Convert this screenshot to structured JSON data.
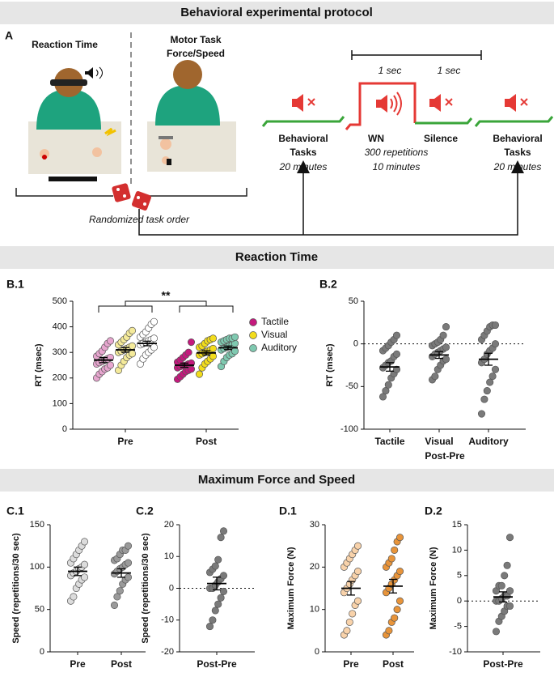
{
  "sections": [
    "Behavioral experimental protocol",
    "Reaction Time",
    "Maximum Force and Speed"
  ],
  "protocol": {
    "panel": "A",
    "rt_title": "Reaction Time",
    "motor_title": [
      "Motor Task",
      "Force/Speed"
    ],
    "randomized": "Randomized task order",
    "intervals": [
      "1 sec",
      "1 sec"
    ],
    "pre_block": [
      "Behavioral",
      "Tasks",
      "20 minutes"
    ],
    "wn": "WN",
    "silence": "Silence",
    "repetitions": "300 repetitions",
    "wn_duration": "10 minutes",
    "post_block": [
      "Behavioral",
      "Tasks",
      "20 minutes"
    ]
  },
  "chart_data": [
    {
      "type": "dot",
      "panel": "B.1",
      "ylabel": "RT (msec)",
      "categories": [
        "Pre",
        "Post"
      ],
      "ylim": [
        0,
        500
      ],
      "yticks": [
        0,
        100,
        200,
        300,
        400,
        500
      ],
      "annotation": "**",
      "legend": "right",
      "series": [
        {
          "name": "Tactile",
          "colors": [
            "#e7a6cf",
            "#c4197d"
          ],
          "values": [
            [
              200,
              215,
              225,
              235,
              240,
              250,
              255,
              260,
              265,
              270,
              275,
              280,
              285,
              295,
              305,
              320,
              335,
              345
            ],
            [
              195,
              205,
              215,
              225,
              230,
              235,
              240,
              245,
              248,
              250,
              255,
              258,
              262,
              270,
              280,
              290,
              300,
              340
            ]
          ],
          "means": [
            270,
            250
          ],
          "sem": [
            10,
            8
          ]
        },
        {
          "name": "Visual",
          "colors": [
            "#f4ea9a",
            "#f2dc1c"
          ],
          "values": [
            [
              230,
              250,
              265,
              280,
              290,
              295,
              300,
              305,
              310,
              315,
              320,
              325,
              330,
              340,
              350,
              360,
              375,
              385
            ],
            [
              215,
              240,
              255,
              265,
              275,
              285,
              290,
              295,
              300,
              305,
              310,
              315,
              320,
              325,
              335,
              345,
              350,
              355
            ]
          ],
          "means": [
            310,
            298
          ],
          "sem": [
            9,
            8
          ]
        },
        {
          "name": "Auditory",
          "colors": [
            "#ffffff",
            "#7fc9b0"
          ],
          "values": [
            [
              255,
              275,
              290,
              300,
              310,
              320,
              330,
              335,
              340,
              345,
              350,
              355,
              360,
              370,
              380,
              395,
              410,
              420
            ],
            [
              245,
              265,
              280,
              290,
              295,
              305,
              310,
              315,
              320,
              325,
              330,
              335,
              340,
              345,
              350,
              355,
              355,
              360
            ]
          ],
          "means": [
            335,
            318
          ],
          "sem": [
            9,
            7
          ]
        }
      ]
    },
    {
      "type": "dot",
      "panel": "B.2",
      "ylabel": "RT (msec)",
      "xlabel": "Post-Pre",
      "categories": [
        "Tactile",
        "Visual",
        "Auditory"
      ],
      "ylim": [
        -100,
        50
      ],
      "yticks": [
        -100,
        -50,
        0,
        50
      ],
      "zero_line": true,
      "series": [
        {
          "colors": [
            "#7a7a7a",
            "#7a7a7a",
            "#7a7a7a"
          ],
          "values": [
            [
              -62,
              -55,
              -48,
              -40,
              -35,
              -30,
              -28,
              -25,
              -22,
              -20,
              -15,
              -12,
              -8,
              -5,
              -2,
              2,
              5,
              10
            ],
            [
              -42,
              -38,
              -30,
              -25,
              -20,
              -18,
              -15,
              -12,
              -10,
              -8,
              -6,
              -4,
              -2,
              0,
              2,
              5,
              10,
              20
            ],
            [
              -82,
              -65,
              -55,
              -45,
              -38,
              -30,
              -22,
              -18,
              -12,
              -8,
              -5,
              0,
              5,
              10,
              15,
              20,
              22,
              22
            ]
          ],
          "means": [
            -27,
            -13,
            -18
          ],
          "sem": [
            5,
            4,
            7
          ]
        }
      ]
    },
    {
      "type": "dot",
      "panel": "C.1",
      "ylabel": "Speed (repetitions/30 sec)",
      "categories": [
        "Pre",
        "Post"
      ],
      "ylim": [
        0,
        150
      ],
      "yticks": [
        0,
        50,
        100,
        150
      ],
      "series": [
        {
          "colors": [
            "#dcdcdc",
            "#9a9a9a"
          ],
          "values": [
            [
              60,
              65,
              75,
              80,
              85,
              88,
              90,
              93,
              95,
              98,
              100,
              103,
              105,
              110,
              115,
              120,
              125,
              130
            ],
            [
              55,
              65,
              72,
              80,
              85,
              88,
              92,
              95,
              98,
              100,
              103,
              105,
              108,
              110,
              115,
              120,
              120,
              125
            ]
          ],
          "means": [
            95,
            93
          ],
          "sem": [
            5,
            5
          ]
        }
      ]
    },
    {
      "type": "dot",
      "panel": "C.2",
      "ylabel": "Speed (repetitions/30 sec)",
      "categories": [
        "Post-Pre"
      ],
      "ylim": [
        -20,
        20
      ],
      "yticks": [
        -20,
        -10,
        0,
        10,
        20
      ],
      "zero_line": true,
      "series": [
        {
          "colors": [
            "#7a7a7a"
          ],
          "values": [
            [
              -12,
              -10,
              -7,
              -5,
              -3,
              -1,
              0,
              0,
              1,
              2,
              3,
              4,
              5,
              6,
              7,
              9,
              16,
              18
            ]
          ],
          "means": [
            1.5
          ],
          "sem": [
            2
          ]
        }
      ]
    },
    {
      "type": "dot",
      "panel": "D.1",
      "ylabel": "Maximum Force (N)",
      "categories": [
        "Pre",
        "Post"
      ],
      "ylim": [
        0,
        30
      ],
      "yticks": [
        0,
        10,
        20,
        30
      ],
      "series": [
        {
          "colors": [
            "#f8d2aa",
            "#e8943a"
          ],
          "values": [
            [
              4,
              5,
              7,
              9,
              11,
              12,
              14,
              15,
              16,
              17,
              18,
              19,
              20,
              21,
              22,
              23,
              24,
              25
            ],
            [
              4,
              5,
              7,
              8,
              10,
              12,
              14,
              15,
              16,
              17,
              18,
              19,
              20,
              21,
              22,
              24,
              26,
              27
            ]
          ],
          "means": [
            15,
            15.5
          ],
          "sem": [
            1.6,
            1.6
          ]
        }
      ]
    },
    {
      "type": "dot",
      "panel": "D.2",
      "ylabel": "Maximum Force (N)",
      "categories": [
        "Post-Pre"
      ],
      "ylim": [
        -10,
        15
      ],
      "yticks": [
        -10,
        -5,
        0,
        5,
        10,
        15
      ],
      "zero_line": true,
      "series": [
        {
          "colors": [
            "#7a7a7a"
          ],
          "values": [
            [
              -6,
              -4,
              -3,
              -2,
              -1,
              -1,
              0,
              0,
              0.5,
              1,
              1,
              2,
              2,
              3,
              3,
              5,
              7,
              12.5
            ]
          ],
          "means": [
            0.8
          ],
          "sem": [
            1
          ]
        }
      ]
    }
  ]
}
